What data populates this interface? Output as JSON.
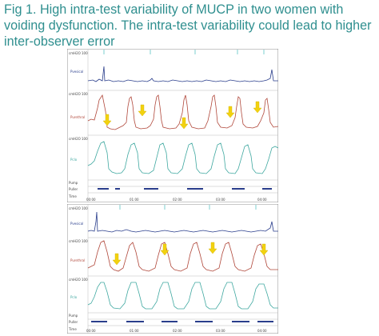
{
  "title": "Fig 1. High intra-test variability of MUCP in two women with voiding dysfunction. The intra-test variability could lead to higher inter-observer error",
  "trace_colors": {
    "pves": "#2a3e8c",
    "pura": "#b0473a",
    "pclo": "#3fa8a0",
    "arrow": "#f2d210"
  },
  "panels": [
    {
      "scale_labels": [
        "cmH2O",
        "cmH2O",
        "cmH2O"
      ],
      "scale_values": [
        "100",
        "100",
        "100"
      ],
      "channel_labels": [
        "Pvesical",
        "Purethral",
        "Pclo"
      ],
      "bottom_labels": [
        "Pump",
        "Puller",
        "Time"
      ],
      "time_ticks": [
        "00:00",
        "01:00",
        "02:00",
        "03:00",
        "04:00"
      ]
    },
    {
      "scale_labels": [
        "cmH2O",
        "cmH2O",
        "cmH2O"
      ],
      "scale_values": [
        "100",
        "100",
        "100"
      ],
      "channel_labels": [
        "Pvesical",
        "Purethral",
        "Pclo"
      ],
      "bottom_labels": [
        "Pump",
        "Puller",
        "Time"
      ],
      "time_ticks": [
        "00:00",
        "01:00",
        "02:00",
        "03:00",
        "04:00"
      ]
    }
  ]
}
